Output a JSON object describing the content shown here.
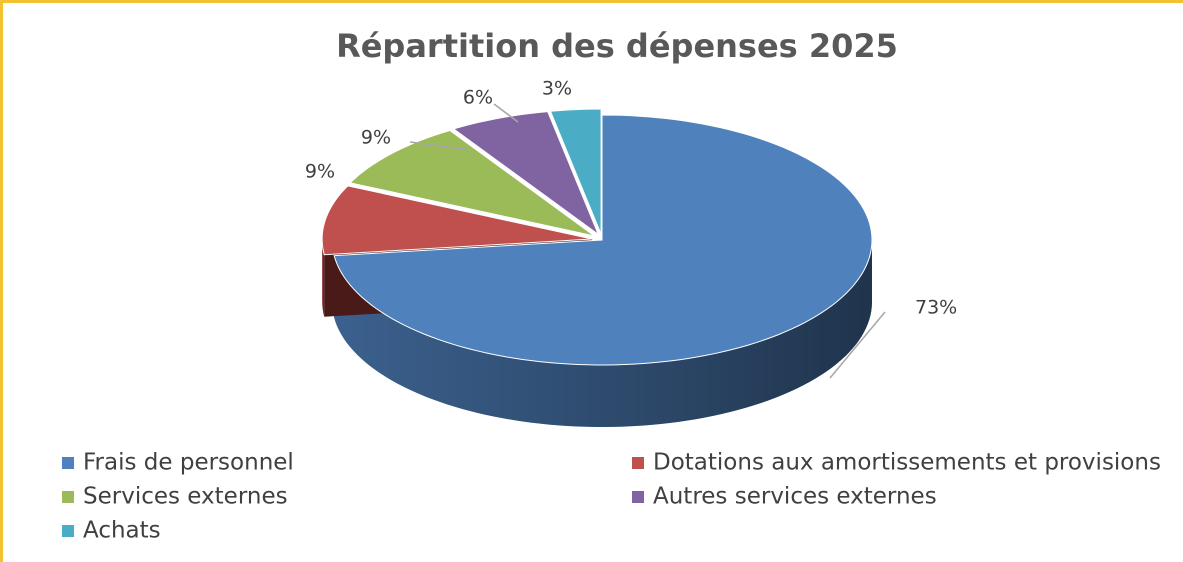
{
  "chart_data": {
    "type": "pie",
    "title": "Répartition des dépenses 2025",
    "categories": [
      "Frais de personnel",
      "Dotations aux amortissements et provisions",
      "Services externes",
      "Autres services externes",
      "Achats"
    ],
    "values": [
      73,
      9,
      9,
      6,
      3
    ],
    "value_labels": [
      "73%",
      "9%",
      "9%",
      "6%",
      "3%"
    ],
    "colors": [
      "#4f81bd",
      "#c0504d",
      "#9bbb59",
      "#8064a2",
      "#4bacc6"
    ],
    "legend": "bottom"
  }
}
